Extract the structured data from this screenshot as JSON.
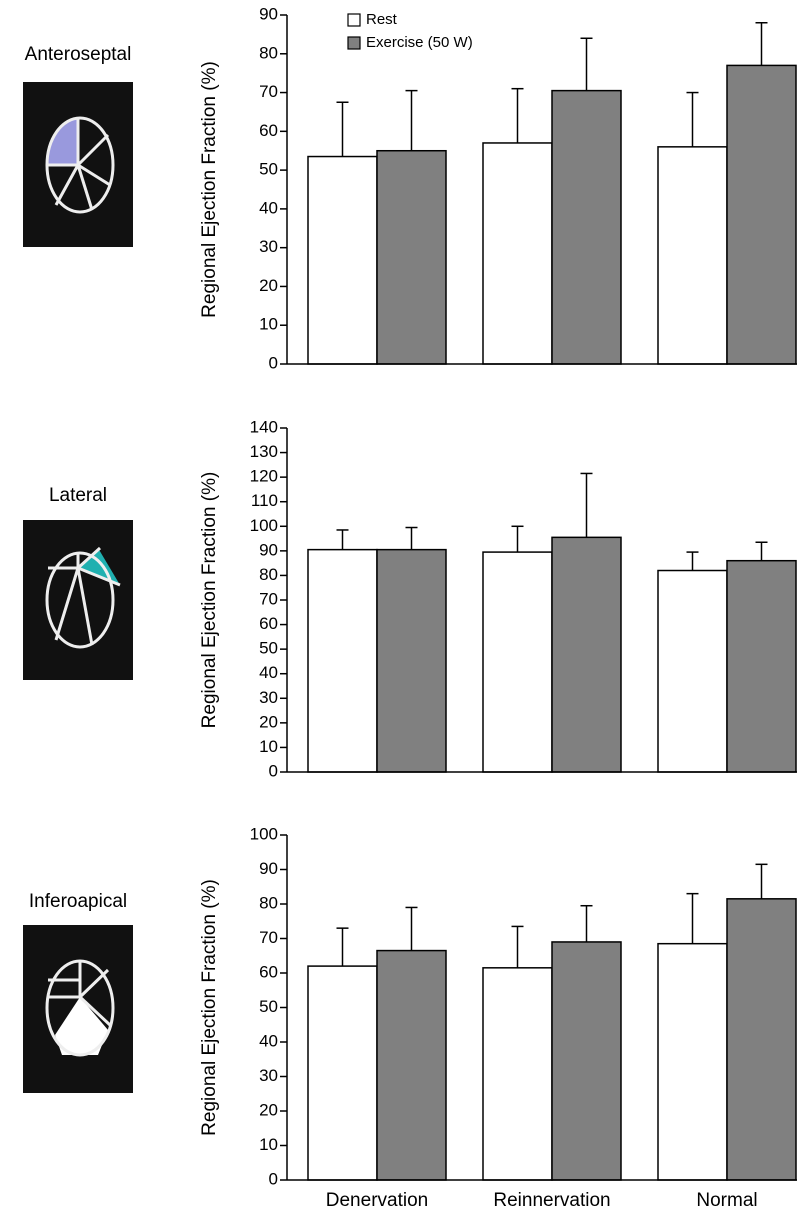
{
  "chart_data": [
    {
      "type": "bar",
      "region": "Anteroseptal",
      "ylabel": "Regional Ejection Fraction (%)",
      "ylim": [
        0,
        90
      ],
      "yticks": [
        0,
        10,
        20,
        30,
        40,
        50,
        60,
        70,
        80,
        90
      ],
      "series": [
        {
          "name": "Rest",
          "color": "#ffffff",
          "values": [
            53.5,
            57,
            56
          ],
          "errors": [
            14,
            14,
            14
          ]
        },
        {
          "name": "Exercise (50 W)",
          "color": "#808080",
          "values": [
            55,
            70.5,
            77
          ],
          "errors": [
            15.5,
            13.5,
            11
          ]
        }
      ]
    },
    {
      "type": "bar",
      "region": "Lateral",
      "ylabel": "Regional Ejection Fraction (%)",
      "ylim": [
        0,
        140
      ],
      "yticks": [
        0,
        10,
        20,
        30,
        40,
        50,
        60,
        70,
        80,
        90,
        100,
        110,
        120,
        130,
        140
      ],
      "series": [
        {
          "color": "#ffffff",
          "values": [
            90.5,
            89.5,
            82
          ],
          "errors": [
            8,
            10.5,
            7.5
          ]
        },
        {
          "color": "#808080",
          "values": [
            90.5,
            95.5,
            86
          ],
          "errors": [
            9,
            26,
            7.5
          ]
        }
      ]
    },
    {
      "type": "bar",
      "region": "Inferoapical",
      "ylabel": "Regional Ejection Fraction (%)",
      "categories": [
        "Denervation",
        "Reinnervation",
        "Normal"
      ],
      "ylim": [
        0,
        100
      ],
      "yticks": [
        0,
        10,
        20,
        30,
        40,
        50,
        60,
        70,
        80,
        90,
        100
      ],
      "series": [
        {
          "color": "#ffffff",
          "values": [
            62,
            61.5,
            68.5
          ],
          "errors": [
            11,
            12,
            14.5
          ]
        },
        {
          "color": "#808080",
          "values": [
            66.5,
            69,
            81.5
          ],
          "errors": [
            12.5,
            10.5,
            10
          ]
        }
      ]
    }
  ]
}
